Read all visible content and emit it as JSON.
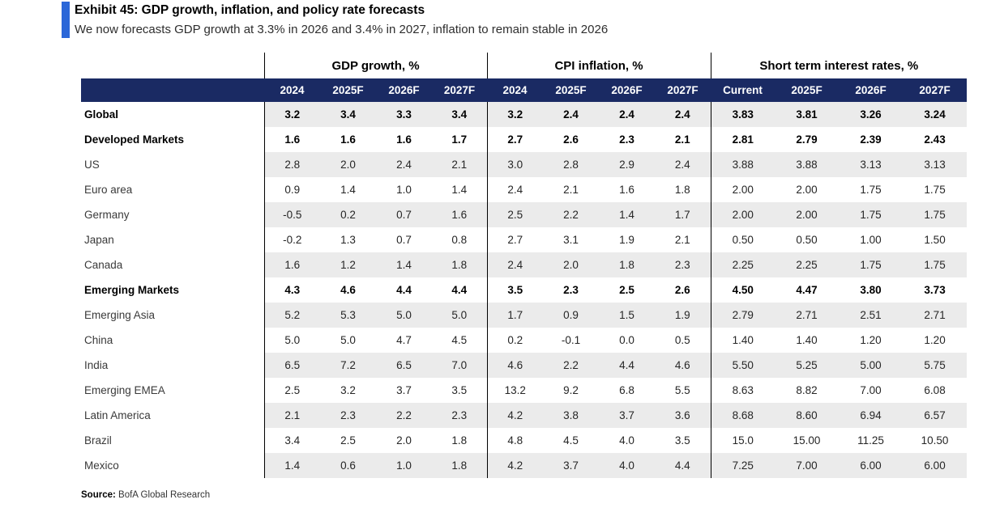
{
  "exhibit": {
    "title": "Exhibit 45: GDP growth, inflation, and policy rate forecasts",
    "subtitle": "We now forecasts GDP growth at 3.3% in 2026 and 3.4% in 2027, inflation to remain stable in 2026"
  },
  "colors": {
    "accent_bar_blue": "#2b67d8",
    "header_navy": "#1a2a63",
    "row_stripe_gray": "#ebebeb"
  },
  "chart_data": {
    "type": "table",
    "title": "Exhibit 45: GDP growth, inflation, and policy rate forecasts",
    "column_groups": [
      {
        "label": "GDP growth, %",
        "columns": [
          "2024",
          "2025F",
          "2026F",
          "2027F"
        ]
      },
      {
        "label": "CPI inflation, %",
        "columns": [
          "2024",
          "2025F",
          "2026F",
          "2027F"
        ]
      },
      {
        "label": "Short term interest rates, %",
        "columns": [
          "Current",
          "2025F",
          "2026F",
          "2027F"
        ]
      }
    ],
    "rows": [
      {
        "label": "Global",
        "indent": 0,
        "emphasis": true,
        "gdp": [
          "3.2",
          "3.4",
          "3.3",
          "3.4"
        ],
        "cpi": [
          "3.2",
          "2.4",
          "2.4",
          "2.4"
        ],
        "rates": [
          "3.83",
          "3.81",
          "3.26",
          "3.24"
        ]
      },
      {
        "label": "Developed Markets",
        "indent": 1,
        "emphasis": true,
        "gdp": [
          "1.6",
          "1.6",
          "1.6",
          "1.7"
        ],
        "cpi": [
          "2.7",
          "2.6",
          "2.3",
          "2.1"
        ],
        "rates": [
          "2.81",
          "2.79",
          "2.39",
          "2.43"
        ]
      },
      {
        "label": "US",
        "indent": 3,
        "emphasis": false,
        "gdp": [
          "2.8",
          "2.0",
          "2.4",
          "2.1"
        ],
        "cpi": [
          "3.0",
          "2.8",
          "2.9",
          "2.4"
        ],
        "rates": [
          "3.88",
          "3.88",
          "3.13",
          "3.13"
        ]
      },
      {
        "label": "Euro area",
        "indent": 3,
        "emphasis": false,
        "gdp": [
          "0.9",
          "1.4",
          "1.0",
          "1.4"
        ],
        "cpi": [
          "2.4",
          "2.1",
          "1.6",
          "1.8"
        ],
        "rates": [
          "2.00",
          "2.00",
          "1.75",
          "1.75"
        ]
      },
      {
        "label": "Germany",
        "indent": 3,
        "emphasis": false,
        "gdp": [
          "-0.5",
          "0.2",
          "0.7",
          "1.6"
        ],
        "cpi": [
          "2.5",
          "2.2",
          "1.4",
          "1.7"
        ],
        "rates": [
          "2.00",
          "2.00",
          "1.75",
          "1.75"
        ]
      },
      {
        "label": "Japan",
        "indent": 3,
        "emphasis": false,
        "gdp": [
          "-0.2",
          "1.3",
          "0.7",
          "0.8"
        ],
        "cpi": [
          "2.7",
          "3.1",
          "1.9",
          "2.1"
        ],
        "rates": [
          "0.50",
          "0.50",
          "1.00",
          "1.50"
        ]
      },
      {
        "label": "Canada",
        "indent": 3,
        "emphasis": false,
        "gdp": [
          "1.6",
          "1.2",
          "1.4",
          "1.8"
        ],
        "cpi": [
          "2.4",
          "2.0",
          "1.8",
          "2.3"
        ],
        "rates": [
          "2.25",
          "2.25",
          "1.75",
          "1.75"
        ]
      },
      {
        "label": "Emerging Markets",
        "indent": 1,
        "emphasis": true,
        "gdp": [
          "4.3",
          "4.6",
          "4.4",
          "4.4"
        ],
        "cpi": [
          "3.5",
          "2.3",
          "2.5",
          "2.6"
        ],
        "rates": [
          "4.50",
          "4.47",
          "3.80",
          "3.73"
        ]
      },
      {
        "label": "Emerging Asia",
        "indent": 2,
        "emphasis": false,
        "gdp": [
          "5.2",
          "5.3",
          "5.0",
          "5.0"
        ],
        "cpi": [
          "1.7",
          "0.9",
          "1.5",
          "1.9"
        ],
        "rates": [
          "2.79",
          "2.71",
          "2.51",
          "2.71"
        ]
      },
      {
        "label": "China",
        "indent": 3,
        "emphasis": false,
        "gdp": [
          "5.0",
          "5.0",
          "4.7",
          "4.5"
        ],
        "cpi": [
          "0.2",
          "-0.1",
          "0.0",
          "0.5"
        ],
        "rates": [
          "1.40",
          "1.40",
          "1.20",
          "1.20"
        ]
      },
      {
        "label": "India",
        "indent": 3,
        "emphasis": false,
        "gdp": [
          "6.5",
          "7.2",
          "6.5",
          "7.0"
        ],
        "cpi": [
          "4.6",
          "2.2",
          "4.4",
          "4.6"
        ],
        "rates": [
          "5.50",
          "5.25",
          "5.00",
          "5.75"
        ]
      },
      {
        "label": "Emerging EMEA",
        "indent": 2,
        "emphasis": false,
        "gdp": [
          "2.5",
          "3.2",
          "3.7",
          "3.5"
        ],
        "cpi": [
          "13.2",
          "9.2",
          "6.8",
          "5.5"
        ],
        "rates": [
          "8.63",
          "8.82",
          "7.00",
          "6.08"
        ]
      },
      {
        "label": "Latin America",
        "indent": 2,
        "emphasis": false,
        "gdp": [
          "2.1",
          "2.3",
          "2.2",
          "2.3"
        ],
        "cpi": [
          "4.2",
          "3.8",
          "3.7",
          "3.6"
        ],
        "rates": [
          "8.68",
          "8.60",
          "6.94",
          "6.57"
        ]
      },
      {
        "label": "Brazil",
        "indent": 3,
        "emphasis": false,
        "gdp": [
          "3.4",
          "2.5",
          "2.0",
          "1.8"
        ],
        "cpi": [
          "4.8",
          "4.5",
          "4.0",
          "3.5"
        ],
        "rates": [
          "15.0",
          "15.00",
          "11.25",
          "10.50"
        ]
      },
      {
        "label": "Mexico",
        "indent": 3,
        "emphasis": false,
        "gdp": [
          "1.4",
          "0.6",
          "1.0",
          "1.8"
        ],
        "cpi": [
          "4.2",
          "3.7",
          "4.0",
          "4.4"
        ],
        "rates": [
          "7.25",
          "7.00",
          "6.00",
          "6.00"
        ]
      }
    ]
  },
  "source": {
    "label": "Source:",
    "text": " BofA Global Research"
  }
}
